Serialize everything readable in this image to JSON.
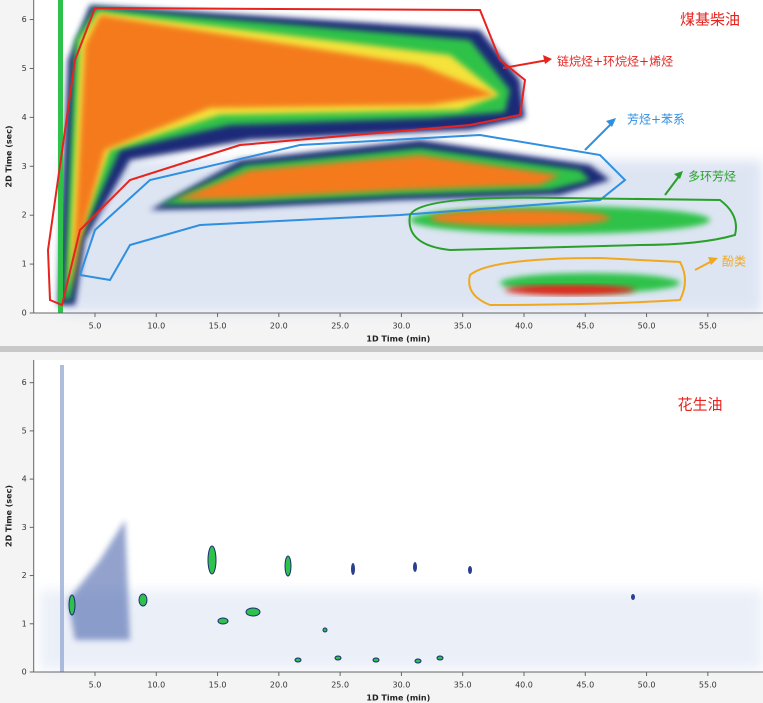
{
  "chart_data": [
    {
      "type": "contour",
      "title": "煤基柴油",
      "xlabel": "1D Time (min)",
      "ylabel": "2D Time (sec)",
      "xlim": [
        0,
        59.5
      ],
      "ylim": [
        0,
        6.4
      ],
      "xticks": [
        {
          "value": 5,
          "label": "5.0"
        },
        {
          "value": 10,
          "label": "10.0"
        },
        {
          "value": 15,
          "label": "15.0"
        },
        {
          "value": 20,
          "label": "20.0"
        },
        {
          "value": 25,
          "label": "25.0"
        },
        {
          "value": 30,
          "label": "30.0"
        },
        {
          "value": 35,
          "label": "35.0"
        },
        {
          "value": 40,
          "label": "40.0"
        },
        {
          "value": 45,
          "label": "45.0"
        },
        {
          "value": 50,
          "label": "50.0"
        },
        {
          "value": 55,
          "label": "55.0"
        }
      ],
      "yticks": [
        0,
        1,
        2,
        3,
        4,
        5,
        6
      ],
      "title_color": "#e8231e",
      "annotations": [
        {
          "text": "链烷烃+环烷烃+烯烃",
          "color": "#e8231e"
        },
        {
          "text": "芳烃+苯系",
          "color": "#2f8fe0"
        },
        {
          "text": "多环芳烃",
          "color": "#2aa02a"
        },
        {
          "text": "酚类",
          "color": "#f0a81e"
        }
      ]
    },
    {
      "type": "contour",
      "title": "花生油",
      "xlabel": "1D Time (min)",
      "ylabel": "2D Time (sec)",
      "xlim": [
        0,
        59.5
      ],
      "ylim": [
        0,
        6.47
      ],
      "xticks": [
        {
          "value": 5,
          "label": "5.0"
        },
        {
          "value": 10,
          "label": "10.0"
        },
        {
          "value": 15,
          "label": "15.0"
        },
        {
          "value": 20,
          "label": "20.0"
        },
        {
          "value": 25,
          "label": "25.0"
        },
        {
          "value": 30,
          "label": "30.0"
        },
        {
          "value": 35,
          "label": "35.0"
        },
        {
          "value": 40,
          "label": "40.0"
        },
        {
          "value": 45,
          "label": "45.0"
        },
        {
          "value": 50,
          "label": "50.0"
        },
        {
          "value": 55,
          "label": "55.0"
        }
      ],
      "yticks": [
        0,
        1,
        2,
        3,
        4,
        5,
        6
      ],
      "title_color": "#e8231e",
      "annotations": []
    }
  ]
}
